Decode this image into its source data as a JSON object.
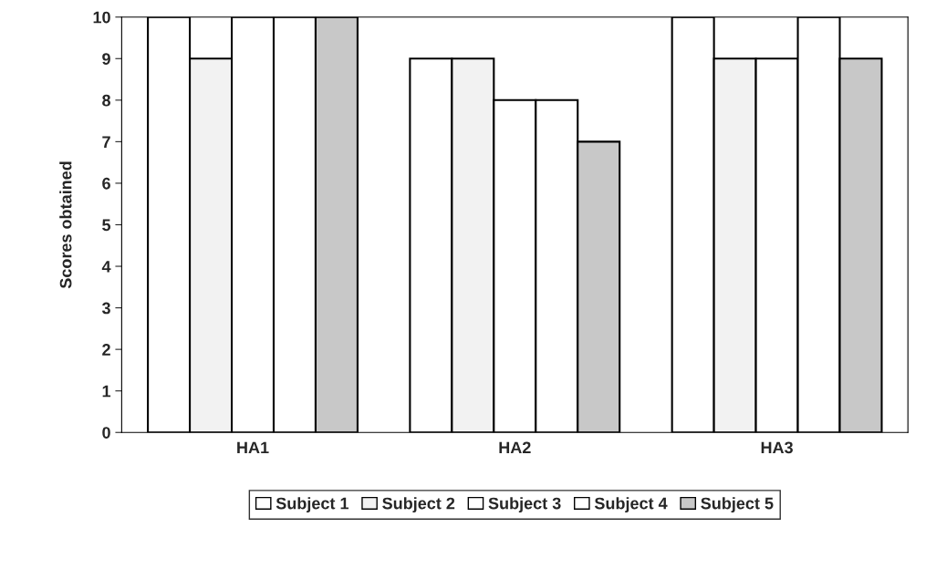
{
  "chart_data": {
    "type": "bar",
    "ylabel": "Scores obtained",
    "categories": [
      "HA1",
      "HA2",
      "HA3"
    ],
    "series": [
      {
        "name": "Subject 1",
        "color": "#ffffff",
        "values": [
          10,
          9,
          10
        ]
      },
      {
        "name": "Subject 2",
        "color": "#f2f2f2",
        "values": [
          9,
          9,
          9
        ]
      },
      {
        "name": "Subject 3",
        "color": "#ffffff",
        "values": [
          10,
          8,
          9
        ]
      },
      {
        "name": "Subject 4",
        "color": "#ffffff",
        "values": [
          10,
          8,
          10
        ]
      },
      {
        "name": "Subject 5",
        "color": "#c8c8c8",
        "values": [
          10,
          7,
          9
        ]
      }
    ],
    "ylim": [
      0,
      10
    ],
    "yticks": [
      0,
      1,
      2,
      3,
      4,
      5,
      6,
      7,
      8,
      9,
      10
    ],
    "grid": false,
    "legend": "bottom"
  }
}
